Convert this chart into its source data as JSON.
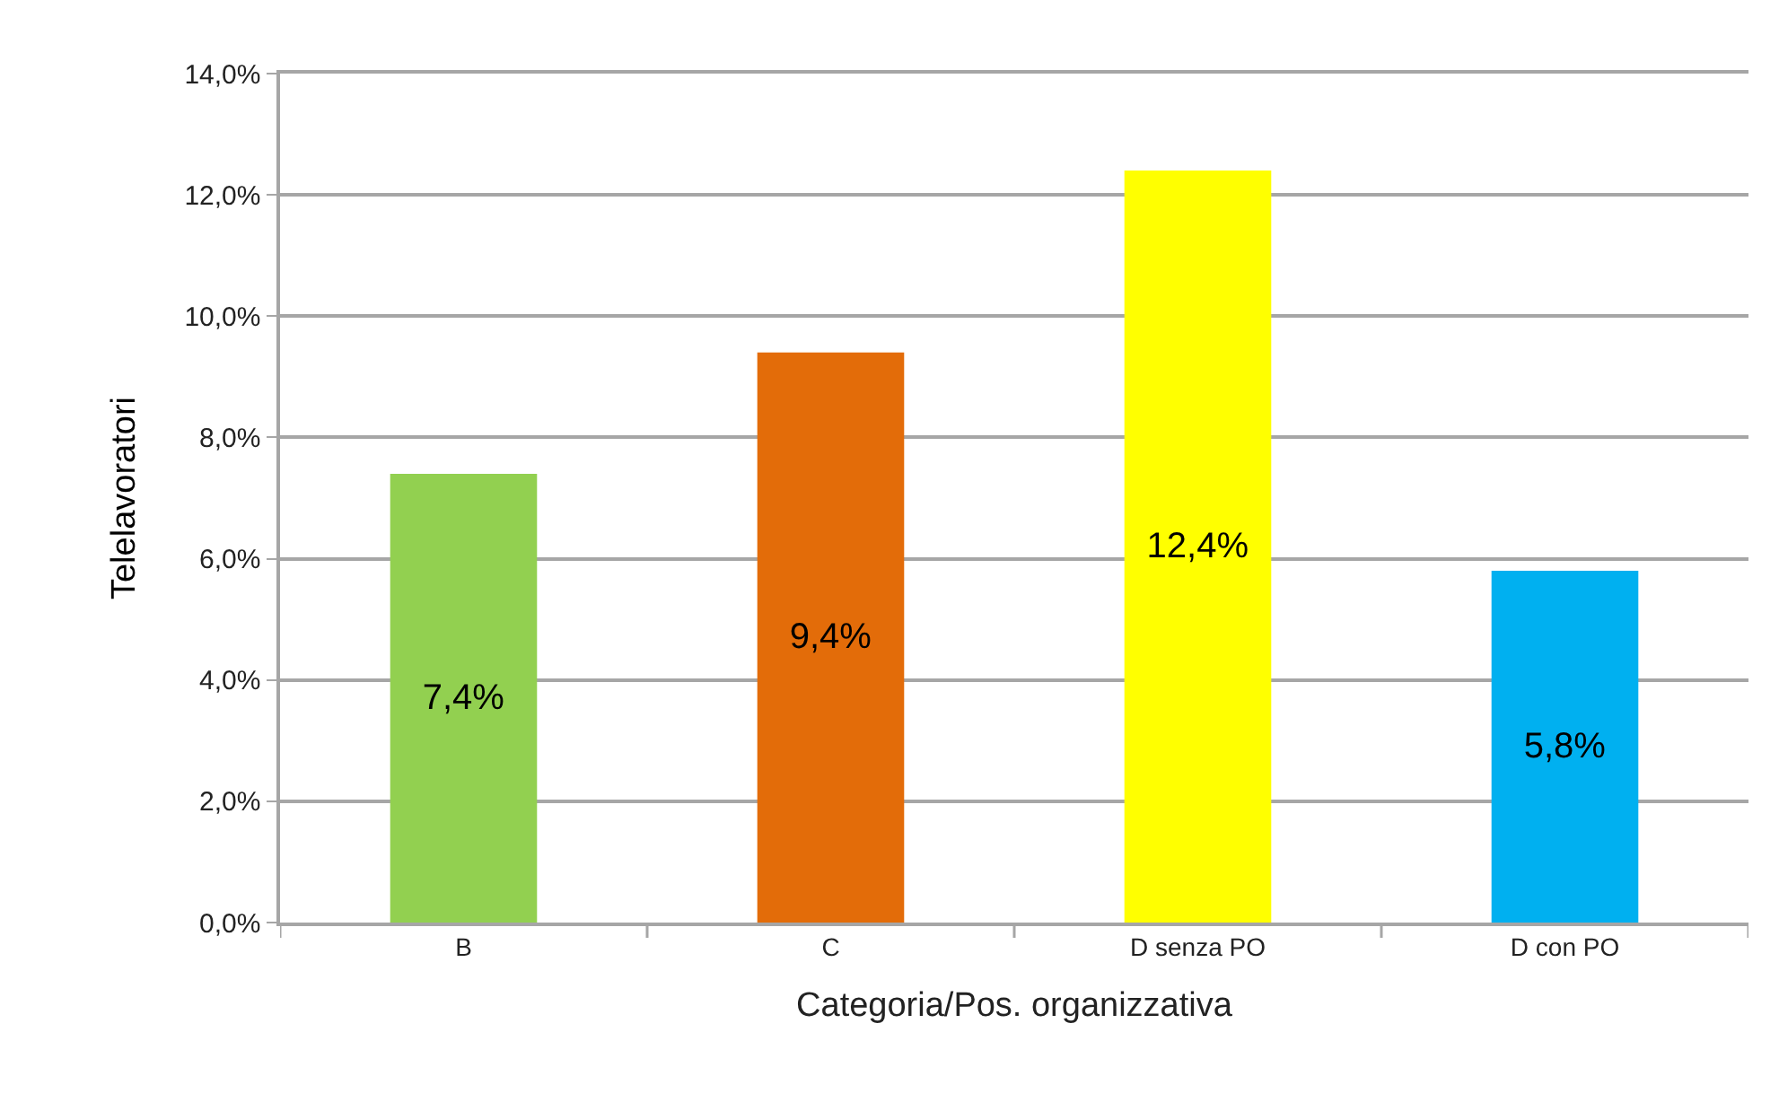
{
  "chart_data": {
    "type": "bar",
    "xlabel": "Categoria/Pos. organizzativa",
    "ylabel": "Telelavoratori",
    "categories": [
      "B",
      "C",
      "D senza PO",
      "D con PO"
    ],
    "values": [
      7.4,
      9.4,
      12.4,
      5.8
    ],
    "colors": [
      "#92d050",
      "#e36c09",
      "#ffff00",
      "#00b0f0"
    ],
    "value_labels": [
      "7,4%",
      "9,4%",
      "12,4%",
      "5,8%"
    ],
    "ylim": [
      0,
      14
    ],
    "yticks": [
      {
        "value": 0,
        "label": "0,0%"
      },
      {
        "value": 2,
        "label": "2,0%"
      },
      {
        "value": 4,
        "label": "4,0%"
      },
      {
        "value": 6,
        "label": "6,0%"
      },
      {
        "value": 8,
        "label": "8,0%"
      },
      {
        "value": 10,
        "label": "10,0%"
      },
      {
        "value": 12,
        "label": "12,0%"
      },
      {
        "value": 14,
        "label": "14,0%"
      }
    ],
    "grid": "y"
  }
}
